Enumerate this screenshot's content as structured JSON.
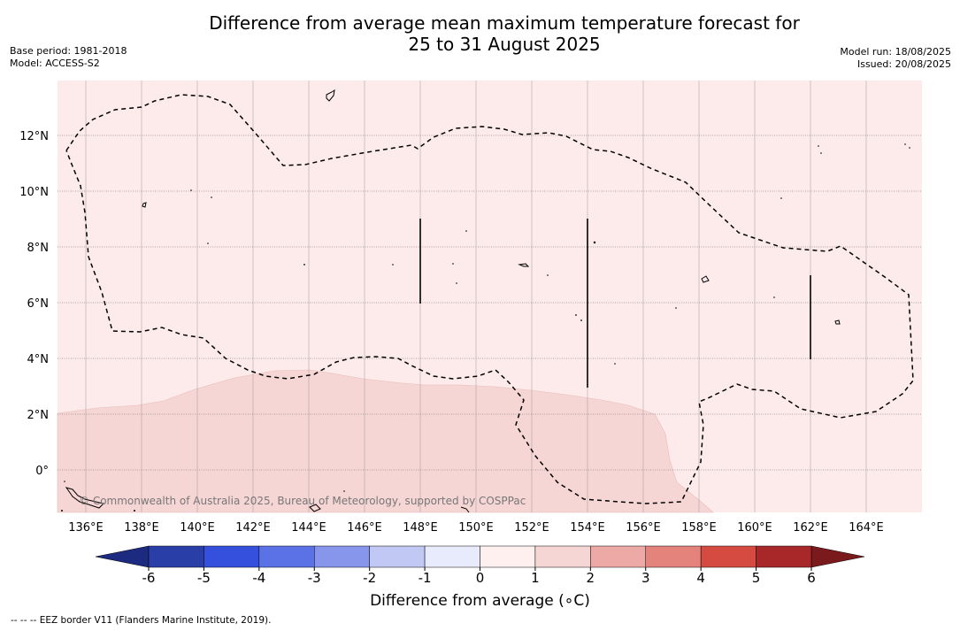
{
  "title_line1": "Difference from average mean maximum temperature forecast for",
  "title_line2": "25 to 31 August 2025",
  "base_period": "Base period: 1981-2018",
  "model": "Model: ACCESS-S2",
  "model_run": "Model run: 18/08/2025",
  "issued": "Issued: 20/08/2025",
  "copyright": "© Commonwealth of Australia 2025, Bureau of Meteorology, supported by COSPPac",
  "lon_ticks": [
    "136°E",
    "138°E",
    "140°E",
    "142°E",
    "144°E",
    "146°E",
    "148°E",
    "150°E",
    "152°E",
    "154°E",
    "156°E",
    "158°E",
    "160°E",
    "162°E",
    "164°E"
  ],
  "lat_ticks": [
    "12°N",
    "10°N",
    "8°N",
    "6°N",
    "4°N",
    "2°N",
    "0°"
  ],
  "colorbar": {
    "label": "Difference from average (∘C)",
    "ticks": [
      "-6",
      "-5",
      "-4",
      "-3",
      "-2",
      "-1",
      "0",
      "1",
      "2",
      "3",
      "4",
      "5",
      "6"
    ],
    "colors": [
      "#2a3ea8",
      "#3550dd",
      "#5a72e6",
      "#8795ea",
      "#c1c8f3",
      "#e8ebfb",
      "#fdf0ef",
      "#f5d6d4",
      "#eca9a5",
      "#e4837c",
      "#d54a41",
      "#a8282a"
    ],
    "under_color": "#1c2a80",
    "over_color": "#7a1a1d"
  },
  "footnote": "--  --  -- EEZ border V11 (Flanders Marine Institute, 2019).",
  "map_colors": {
    "ocean_class_0_1": "#fdeaea",
    "ocean_class_1_2": "#f6d6d4",
    "grid": "#999999"
  }
}
